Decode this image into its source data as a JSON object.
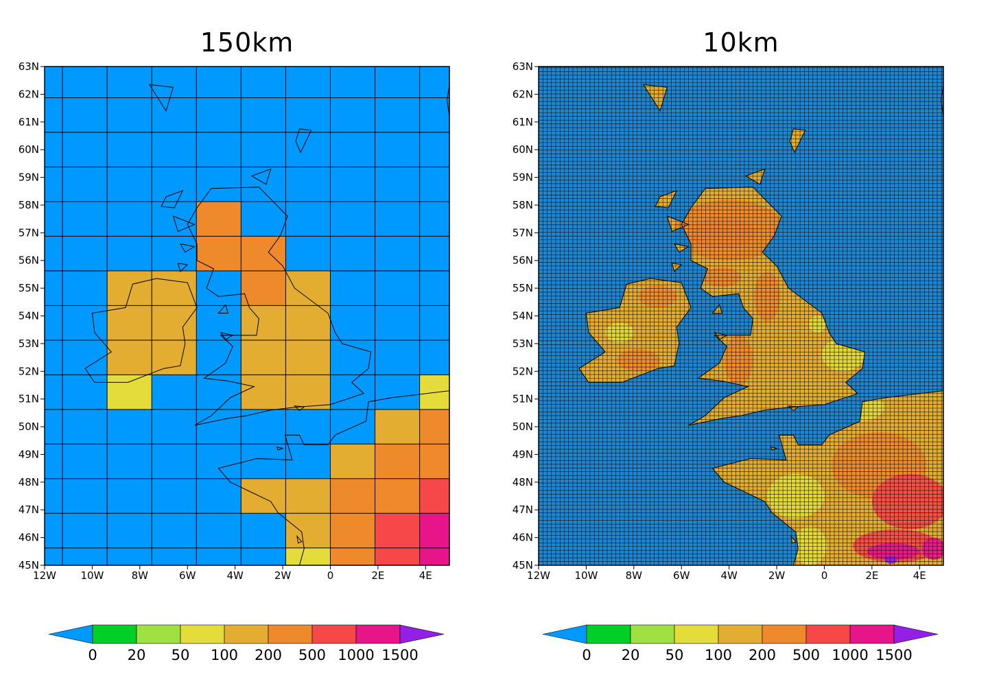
{
  "panels": [
    {
      "title": "150km",
      "lat_labels": [
        "63N",
        "62N",
        "61N",
        "60N",
        "59N",
        "58N",
        "57N",
        "56N",
        "55N",
        "54N",
        "53N",
        "52N",
        "51N",
        "50N",
        "49N",
        "48N",
        "47N",
        "46N",
        "45N"
      ],
      "lon_labels": [
        "12W",
        "10W",
        "8W",
        "6W",
        "4W",
        "2W",
        "0",
        "2E",
        "4E"
      ],
      "colorbar_labels": [
        "0",
        "20",
        "50",
        "100",
        "200",
        "500",
        "1000",
        "1500"
      ]
    },
    {
      "title": "10km",
      "lat_labels": [
        "63N",
        "62N",
        "61N",
        "60N",
        "59N",
        "58N",
        "57N",
        "56N",
        "55N",
        "54N",
        "53N",
        "52N",
        "51N",
        "50N",
        "49N",
        "48N",
        "47N",
        "46N",
        "45N"
      ],
      "lon_labels": [
        "12W",
        "10W",
        "8W",
        "6W",
        "4W",
        "2W",
        "0",
        "2E",
        "4E"
      ],
      "colorbar_labels": [
        "0",
        "20",
        "50",
        "100",
        "200",
        "500",
        "1000",
        "1500"
      ]
    }
  ],
  "map_data": {
    "type": "gridded-elevation",
    "lon_range": [
      -12,
      5
    ],
    "lat_range": [
      45,
      63
    ],
    "levels": [
      0,
      20,
      50,
      100,
      200,
      500,
      1000,
      1500
    ],
    "colors": {
      "ocean": "#0099ff",
      "ocean_10km": "#1f86d0",
      "lvl_0_20": "#00d025",
      "lvl_20_50": "#a0e040",
      "lvl_50_100": "#e4dc3a",
      "lvl_100_200": "#e2ad30",
      "lvl_200_500": "#ee8a2c",
      "lvl_500_1000": "#f64848",
      "lvl_1000_1500": "#e6158a",
      "lvl_over_1500": "#9320e4",
      "grid_line": "#000000"
    },
    "coarse_grid_lon_edges": [
      -12,
      -11.25,
      -9.375,
      -7.5,
      -5.625,
      -3.75,
      -1.875,
      0,
      1.875,
      3.75,
      5
    ],
    "coarse_grid_lat_edges": [
      45,
      45.625,
      46.875,
      48.125,
      49.375,
      50.625,
      51.875,
      53.125,
      54.375,
      55.625,
      56.875,
      58.125,
      59.375,
      60.625,
      61.875,
      63
    ],
    "coarse_cells": [
      {
        "lon": [
          -5.625,
          -3.75
        ],
        "lat": [
          55.625,
          58.125
        ],
        "level": 4
      },
      {
        "lon": [
          -3.75,
          -1.875
        ],
        "lat": [
          54.375,
          56.875
        ],
        "level": 4
      },
      {
        "lon": [
          -9.375,
          -5.625
        ],
        "lat": [
          53.125,
          55.625
        ],
        "level": 3
      },
      {
        "lon": [
          -9.375,
          -7.5
        ],
        "lat": [
          51.875,
          53.125
        ],
        "level": 3
      },
      {
        "lon": [
          -7.5,
          -5.625
        ],
        "lat": [
          51.875,
          53.125
        ],
        "level": 3
      },
      {
        "lon": [
          -9.375,
          -7.5
        ],
        "lat": [
          50.625,
          51.875
        ],
        "level": 2
      },
      {
        "lon": [
          -1.875,
          0
        ],
        "lat": [
          54.375,
          55.625
        ],
        "level": 3
      },
      {
        "lon": [
          -3.75,
          0
        ],
        "lat": [
          50.625,
          54.375
        ],
        "level": 3
      },
      {
        "lon": [
          3.75,
          5
        ],
        "lat": [
          50.625,
          51.875
        ],
        "level": 2
      },
      {
        "lon": [
          1.875,
          3.75
        ],
        "lat": [
          49.375,
          50.625
        ],
        "level": 3
      },
      {
        "lon": [
          3.75,
          5
        ],
        "lat": [
          49.375,
          50.625
        ],
        "level": 4
      },
      {
        "lon": [
          0,
          1.875
        ],
        "lat": [
          48.125,
          49.375
        ],
        "level": 3
      },
      {
        "lon": [
          1.875,
          5
        ],
        "lat": [
          48.125,
          49.375
        ],
        "level": 4
      },
      {
        "lon": [
          -3.75,
          0
        ],
        "lat": [
          46.875,
          48.125
        ],
        "level": 3
      },
      {
        "lon": [
          0,
          3.75
        ],
        "lat": [
          46.875,
          48.125
        ],
        "level": 4
      },
      {
        "lon": [
          3.75,
          5
        ],
        "lat": [
          46.875,
          48.125
        ],
        "level": 5
      },
      {
        "lon": [
          -1.875,
          0
        ],
        "lat": [
          45.625,
          46.875
        ],
        "level": 3
      },
      {
        "lon": [
          0,
          1.875
        ],
        "lat": [
          45.625,
          46.875
        ],
        "level": 4
      },
      {
        "lon": [
          1.875,
          3.75
        ],
        "lat": [
          45.625,
          46.875
        ],
        "level": 5
      },
      {
        "lon": [
          3.75,
          5
        ],
        "lat": [
          45.625,
          46.875
        ],
        "level": 6
      },
      {
        "lon": [
          -1.875,
          0
        ],
        "lat": [
          45,
          45.625
        ],
        "level": 2
      },
      {
        "lon": [
          0,
          1.875
        ],
        "lat": [
          45,
          45.625
        ],
        "level": 4
      },
      {
        "lon": [
          1.875,
          3.75
        ],
        "lat": [
          45,
          45.625
        ],
        "level": 5
      },
      {
        "lon": [
          3.75,
          5
        ],
        "lat": [
          45,
          45.625
        ],
        "level": 6
      }
    ],
    "coastlines": [
      {
        "name": "great-britain",
        "points": [
          [
            -5.0,
            58.6
          ],
          [
            -3.0,
            58.65
          ],
          [
            -1.8,
            57.6
          ],
          [
            -2.1,
            56.9
          ],
          [
            -2.6,
            56.3
          ],
          [
            -2.0,
            55.8
          ],
          [
            -1.5,
            55.0
          ],
          [
            -0.1,
            54.1
          ],
          [
            0.2,
            53.4
          ],
          [
            0.5,
            53.0
          ],
          [
            1.7,
            52.7
          ],
          [
            1.6,
            52.1
          ],
          [
            0.9,
            51.6
          ],
          [
            1.4,
            51.2
          ],
          [
            0.0,
            50.8
          ],
          [
            -1.5,
            50.7
          ],
          [
            -2.5,
            50.6
          ],
          [
            -3.5,
            50.4
          ],
          [
            -4.3,
            50.3
          ],
          [
            -5.7,
            50.05
          ],
          [
            -5.0,
            50.4
          ],
          [
            -4.2,
            51.05
          ],
          [
            -3.2,
            51.45
          ],
          [
            -4.3,
            51.65
          ],
          [
            -5.3,
            51.75
          ],
          [
            -4.4,
            52.3
          ],
          [
            -4.1,
            52.9
          ],
          [
            -4.6,
            53.3
          ],
          [
            -3.1,
            53.3
          ],
          [
            -3.0,
            53.9
          ],
          [
            -3.4,
            54.3
          ],
          [
            -3.6,
            54.8
          ],
          [
            -4.7,
            54.7
          ],
          [
            -5.2,
            55.0
          ],
          [
            -4.9,
            55.7
          ],
          [
            -5.6,
            56.0
          ],
          [
            -5.6,
            56.6
          ],
          [
            -6.0,
            57.3
          ],
          [
            -5.6,
            57.9
          ],
          [
            -5.0,
            58.6
          ]
        ]
      },
      {
        "name": "ireland",
        "points": [
          [
            -6.0,
            55.2
          ],
          [
            -7.3,
            55.35
          ],
          [
            -8.3,
            55.15
          ],
          [
            -8.6,
            54.3
          ],
          [
            -10.0,
            54.1
          ],
          [
            -9.9,
            53.4
          ],
          [
            -9.2,
            52.7
          ],
          [
            -10.3,
            52.1
          ],
          [
            -9.9,
            51.6
          ],
          [
            -8.5,
            51.6
          ],
          [
            -7.0,
            52.1
          ],
          [
            -6.3,
            52.2
          ],
          [
            -6.1,
            53.0
          ],
          [
            -6.2,
            53.6
          ],
          [
            -5.6,
            54.3
          ],
          [
            -6.0,
            55.2
          ]
        ]
      },
      {
        "name": "france",
        "points": [
          [
            5,
            51.3
          ],
          [
            2.6,
            51.05
          ],
          [
            1.6,
            50.9
          ],
          [
            1.5,
            50.2
          ],
          [
            0.2,
            49.7
          ],
          [
            -0.1,
            49.35
          ],
          [
            -1.1,
            49.35
          ],
          [
            -1.3,
            49.7
          ],
          [
            -1.9,
            49.7
          ],
          [
            -1.6,
            48.8
          ],
          [
            -3.1,
            48.85
          ],
          [
            -4.7,
            48.5
          ],
          [
            -4.2,
            48.0
          ],
          [
            -2.5,
            47.3
          ],
          [
            -2.2,
            46.9
          ],
          [
            -1.2,
            46.2
          ],
          [
            -1.1,
            45.6
          ],
          [
            -1.3,
            45
          ]
        ]
      },
      {
        "name": "lewis",
        "points": [
          [
            -6.2,
            58.52
          ],
          [
            -6.9,
            58.3
          ],
          [
            -7.1,
            57.95
          ],
          [
            -6.55,
            57.9
          ],
          [
            -6.2,
            58.52
          ]
        ]
      },
      {
        "name": "shetland",
        "points": [
          [
            -1.3,
            60.75
          ],
          [
            -0.8,
            60.7
          ],
          [
            -1.25,
            59.9
          ],
          [
            -1.45,
            60.3
          ],
          [
            -1.3,
            60.75
          ]
        ]
      },
      {
        "name": "orkney",
        "points": [
          [
            -3.3,
            59.05
          ],
          [
            -2.5,
            59.3
          ],
          [
            -2.7,
            58.75
          ],
          [
            -3.3,
            59.05
          ]
        ]
      },
      {
        "name": "faroes",
        "points": [
          [
            -7.6,
            62.35
          ],
          [
            -6.6,
            62.25
          ],
          [
            -6.9,
            61.4
          ],
          [
            -7.6,
            62.35
          ]
        ]
      },
      {
        "name": "skye",
        "points": [
          [
            -6.6,
            57.6
          ],
          [
            -5.7,
            57.3
          ],
          [
            -6.4,
            57.05
          ],
          [
            -6.6,
            57.6
          ]
        ]
      },
      {
        "name": "mull",
        "points": [
          [
            -6.3,
            56.6
          ],
          [
            -5.7,
            56.5
          ],
          [
            -6.1,
            56.3
          ],
          [
            -6.3,
            56.6
          ]
        ]
      },
      {
        "name": "islay",
        "points": [
          [
            -6.4,
            55.9
          ],
          [
            -6.0,
            55.85
          ],
          [
            -6.3,
            55.6
          ],
          [
            -6.4,
            55.9
          ]
        ]
      },
      {
        "name": "isle-of-man",
        "points": [
          [
            -4.4,
            54.4
          ],
          [
            -4.3,
            54.1
          ],
          [
            -4.7,
            54.1
          ],
          [
            -4.4,
            54.4
          ]
        ]
      },
      {
        "name": "anglesey",
        "points": [
          [
            -4.6,
            53.4
          ],
          [
            -4.1,
            53.3
          ],
          [
            -4.4,
            53.15
          ],
          [
            -4.6,
            53.4
          ]
        ]
      },
      {
        "name": "isle-of-wight",
        "points": [
          [
            -1.5,
            50.75
          ],
          [
            -1.1,
            50.72
          ],
          [
            -1.3,
            50.58
          ],
          [
            -1.5,
            50.75
          ]
        ]
      },
      {
        "name": "jersey",
        "points": [
          [
            -2.25,
            49.27
          ],
          [
            -2.0,
            49.22
          ],
          [
            -2.2,
            49.16
          ],
          [
            -2.25,
            49.27
          ]
        ]
      },
      {
        "name": "ile-d-oleron",
        "points": [
          [
            -1.4,
            46.05
          ],
          [
            -1.2,
            45.85
          ],
          [
            -1.35,
            45.8
          ],
          [
            -1.4,
            46.05
          ]
        ]
      },
      {
        "name": "norway-coast",
        "points": [
          [
            5,
            62.3
          ],
          [
            4.9,
            61.8
          ],
          [
            5,
            61.2
          ]
        ]
      }
    ],
    "fine_land_zones": [
      {
        "level": 5,
        "ellipse": [
          -4.3,
          57.0,
          1.4,
          0.55
        ]
      },
      {
        "level": 4,
        "ellipse": [
          -4.0,
          57.1,
          2.3,
          1.1
        ]
      },
      {
        "level": 4,
        "ellipse": [
          -2.4,
          54.7,
          0.55,
          0.9
        ]
      },
      {
        "level": 4,
        "ellipse": [
          -3.6,
          52.4,
          0.6,
          0.9
        ]
      },
      {
        "level": 4,
        "ellipse": [
          -4.3,
          55.4,
          0.8,
          0.35
        ]
      },
      {
        "level": 2,
        "ellipse": [
          0.8,
          52.6,
          0.9,
          0.6
        ]
      },
      {
        "level": 2,
        "ellipse": [
          -0.3,
          53.7,
          0.35,
          0.3
        ]
      },
      {
        "level": 2,
        "ellipse": [
          -8.6,
          53.4,
          0.6,
          0.35
        ]
      },
      {
        "level": 2,
        "ellipse": [
          -1.2,
          47.5,
          1.2,
          0.8
        ]
      },
      {
        "level": 2,
        "ellipse": [
          1.5,
          50.7,
          1.0,
          0.5
        ]
      },
      {
        "level": 2,
        "ellipse": [
          -0.6,
          45.7,
          0.7,
          0.7
        ]
      },
      {
        "level": 4,
        "ellipse": [
          -7.0,
          54.7,
          0.8,
          0.4
        ]
      },
      {
        "level": 4,
        "ellipse": [
          -7.8,
          52.4,
          0.9,
          0.4
        ]
      },
      {
        "level": 4,
        "ellipse": [
          2.3,
          48.6,
          2.0,
          1.2
        ]
      },
      {
        "level": 5,
        "ellipse": [
          3.6,
          47.3,
          1.6,
          1.0
        ]
      },
      {
        "level": 5,
        "ellipse": [
          3.0,
          45.7,
          1.8,
          0.6
        ]
      },
      {
        "level": 6,
        "ellipse": [
          2.9,
          45.5,
          1.1,
          0.3
        ]
      },
      {
        "level": 6,
        "ellipse": [
          4.6,
          45.6,
          0.5,
          0.4
        ]
      },
      {
        "level": 7,
        "ellipse": [
          2.8,
          45.2,
          0.25,
          0.15
        ]
      }
    ]
  }
}
